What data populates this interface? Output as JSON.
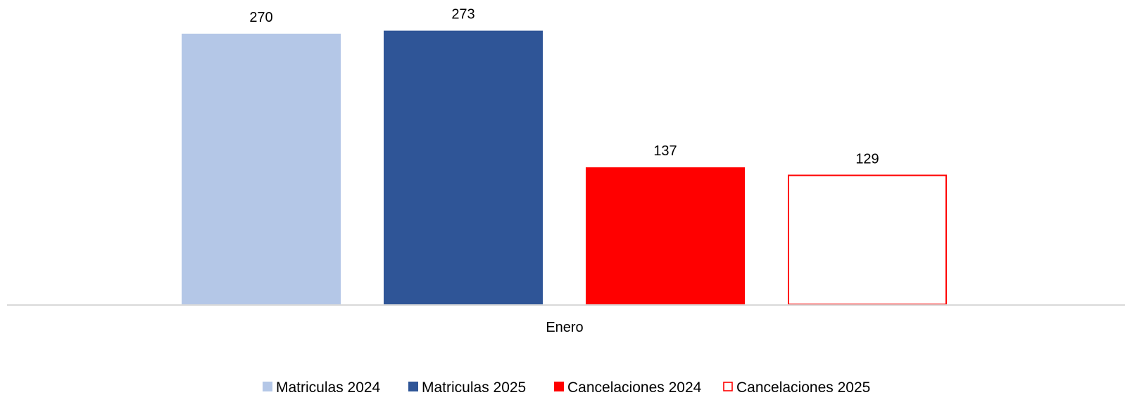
{
  "chart_data": {
    "type": "bar",
    "categories": [
      "Enero"
    ],
    "series": [
      {
        "name": "Matriculas 2024",
        "values": [
          270
        ],
        "color": "#b4c7e7",
        "fill": "solid"
      },
      {
        "name": "Matriculas 2025",
        "values": [
          273
        ],
        "color": "#2f5597",
        "fill": "solid"
      },
      {
        "name": "Cancelaciones 2024",
        "values": [
          137
        ],
        "color": "#ff0000",
        "fill": "solid"
      },
      {
        "name": "Cancelaciones 2025",
        "values": [
          129
        ],
        "color": "#ff0000",
        "fill": "outline"
      }
    ],
    "ylim": [
      0,
      300
    ],
    "grid": false,
    "legend": "bottom",
    "data_labels": true
  }
}
